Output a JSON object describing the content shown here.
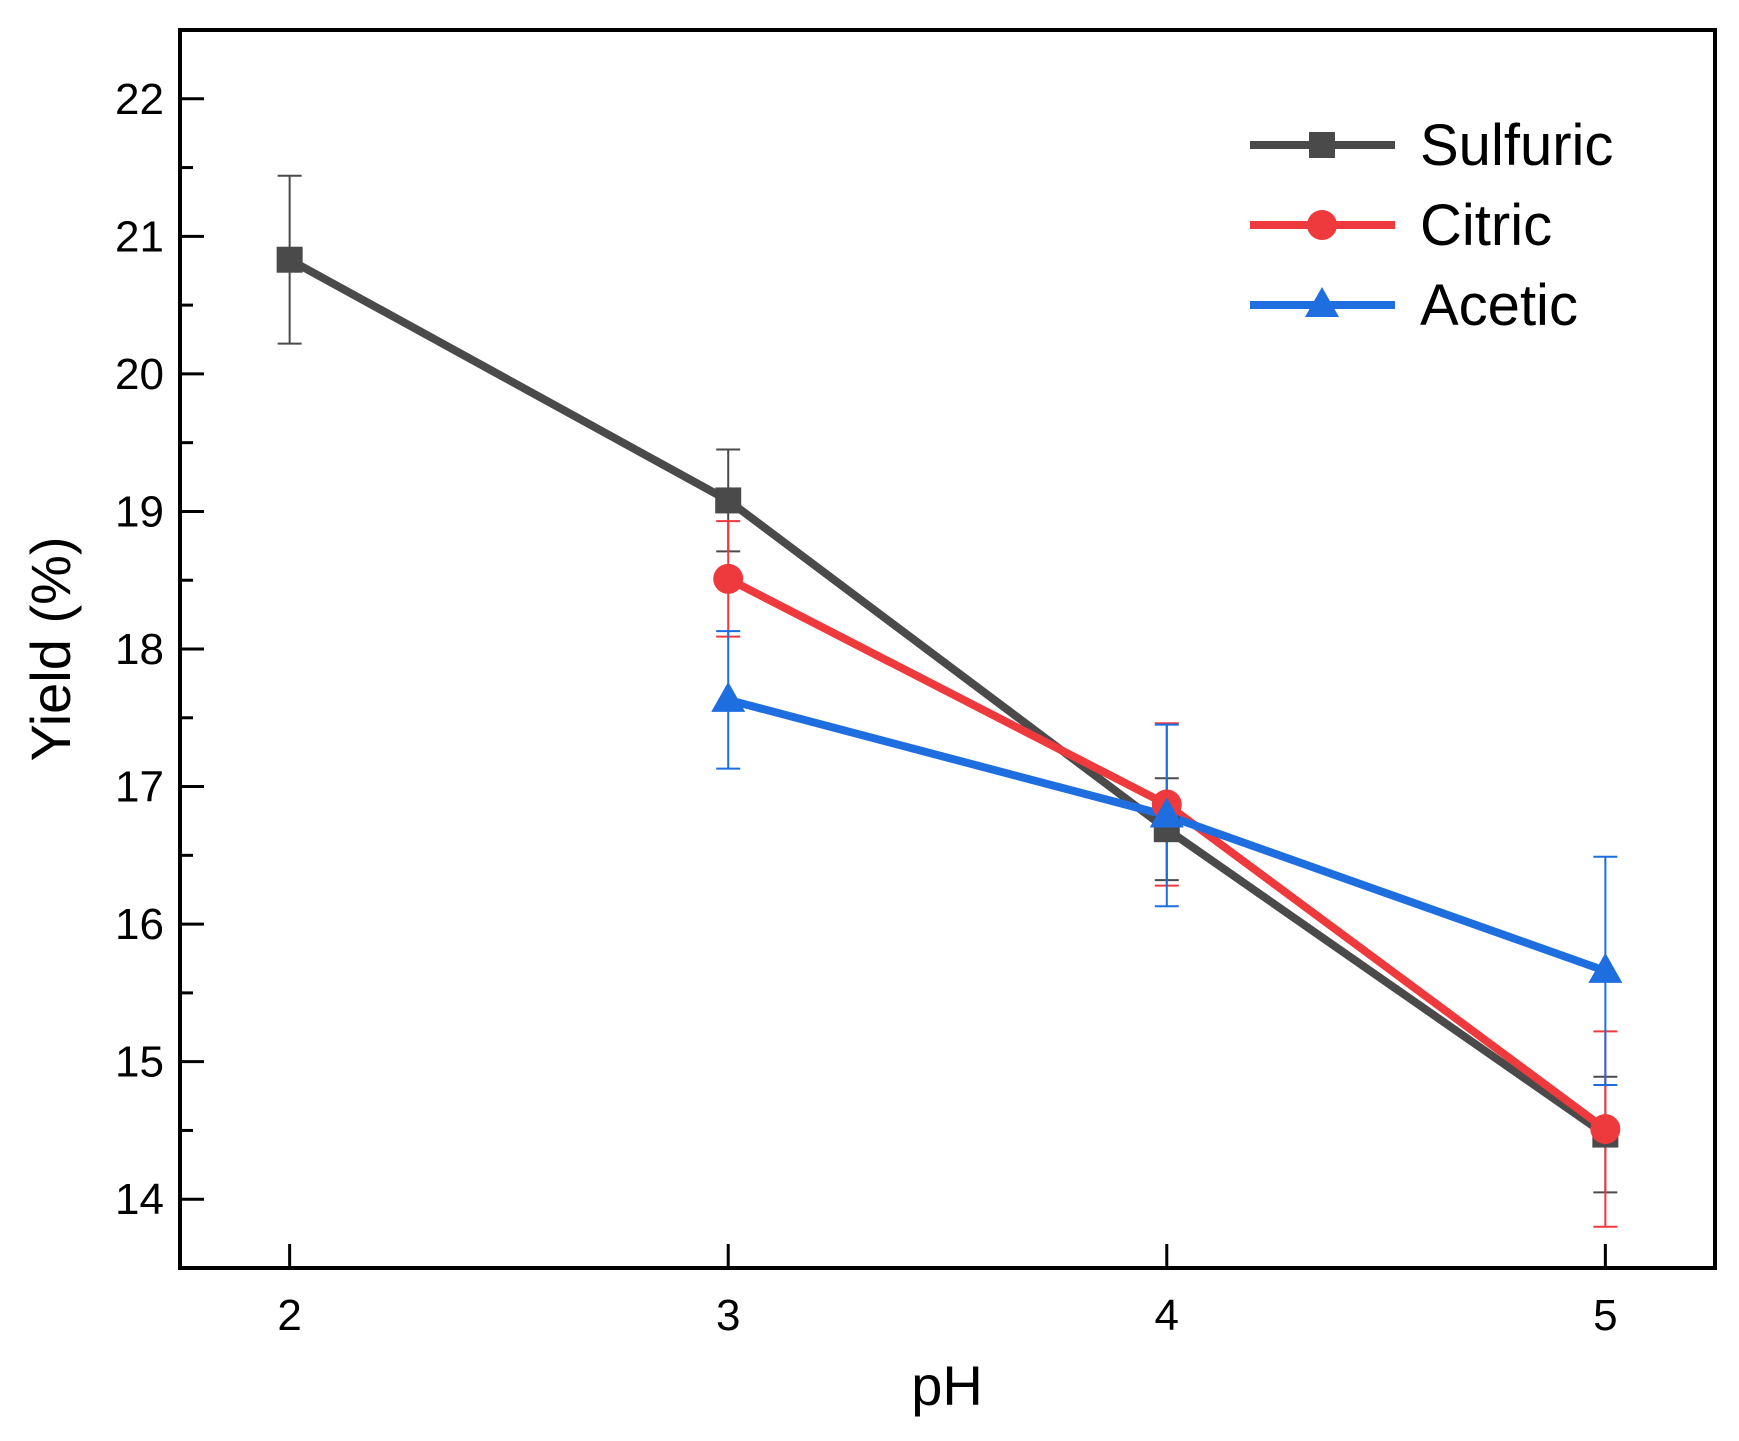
{
  "chart_data": {
    "type": "line",
    "title": "",
    "xlabel": "pH",
    "ylabel": "Yield (%)",
    "x": [
      2,
      3,
      4,
      5
    ],
    "xlim": [
      1.75,
      5.25
    ],
    "ylim": [
      13.5,
      22.5
    ],
    "x_ticks": [
      2,
      3,
      4,
      5
    ],
    "y_ticks": [
      14,
      15,
      16,
      17,
      18,
      19,
      20,
      21,
      22
    ],
    "grid": false,
    "legend_position": "top-right",
    "series": [
      {
        "name": "Sulfuric",
        "color": "#4a4a4a",
        "marker": "square",
        "x": [
          2,
          3,
          4,
          5
        ],
        "values": [
          20.83,
          19.08,
          16.69,
          14.47
        ],
        "errors": [
          0.61,
          0.37,
          0.37,
          0.42
        ]
      },
      {
        "name": "Citric",
        "color": "#ef3a3d",
        "marker": "circle",
        "x": [
          3,
          4,
          5
        ],
        "values": [
          18.51,
          16.87,
          14.51
        ],
        "errors": [
          0.42,
          0.59,
          0.71
        ]
      },
      {
        "name": "Acetic",
        "color": "#1f6ee0",
        "marker": "triangle",
        "x": [
          3,
          4,
          5
        ],
        "values": [
          17.63,
          16.79,
          15.66
        ],
        "errors": [
          0.5,
          0.66,
          0.83
        ]
      }
    ]
  }
}
